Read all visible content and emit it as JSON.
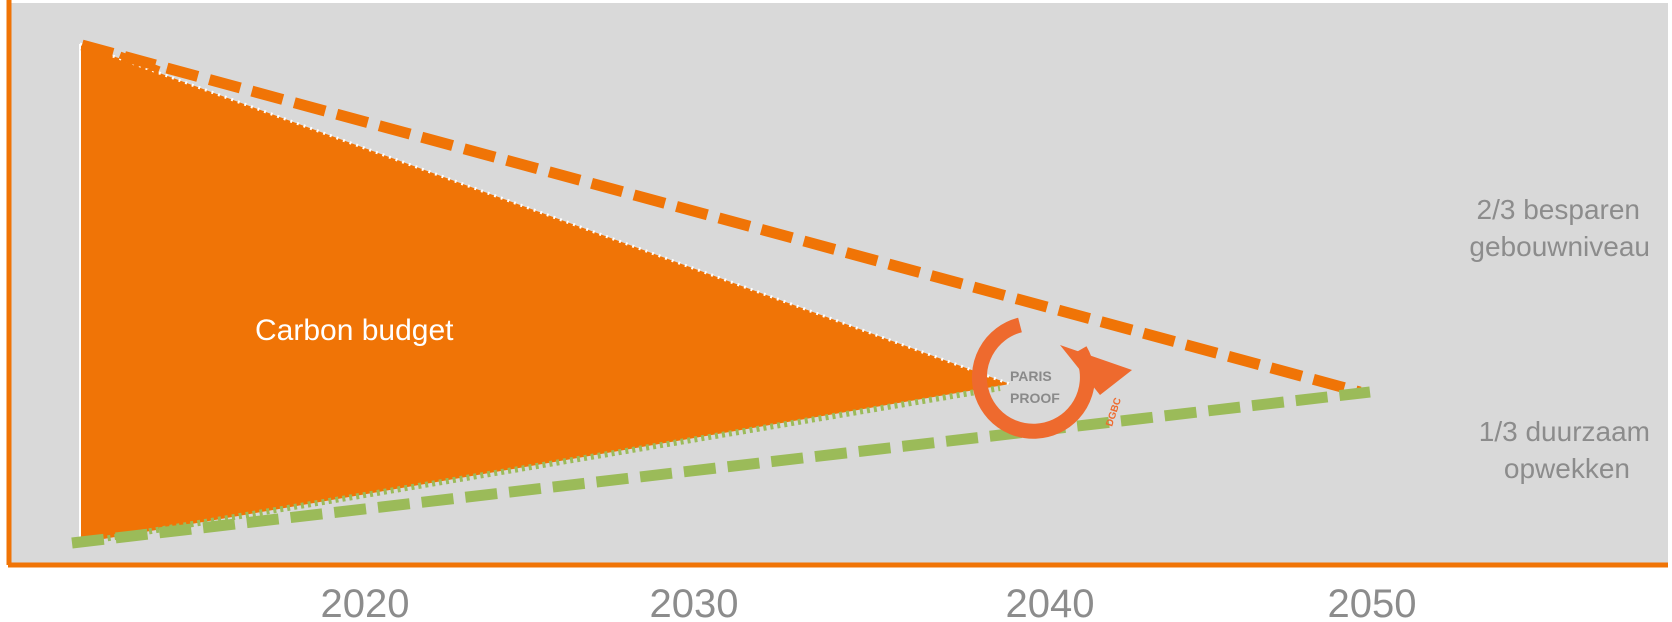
{
  "diagram": {
    "fill_label": "Carbon budget",
    "right_labels": {
      "upper": [
        "2/3 besparen",
        "gebouwniveau"
      ],
      "lower": [
        "1/3 duurzaam",
        "opwekken"
      ]
    },
    "x_ticks": [
      "2020",
      "2030",
      "2040",
      "2050"
    ],
    "logo": {
      "line1": "PARIS",
      "line2": "PROOF",
      "org": "DGBC"
    }
  },
  "colors": {
    "background_panel": "#d9d9d9",
    "orange": "#f07406",
    "logo_orange": "#ee6a2e",
    "green": "#9bbb59",
    "label_gray": "#8c8c8c",
    "logo_gray": "#8a8a8a",
    "white": "#ffffff"
  }
}
